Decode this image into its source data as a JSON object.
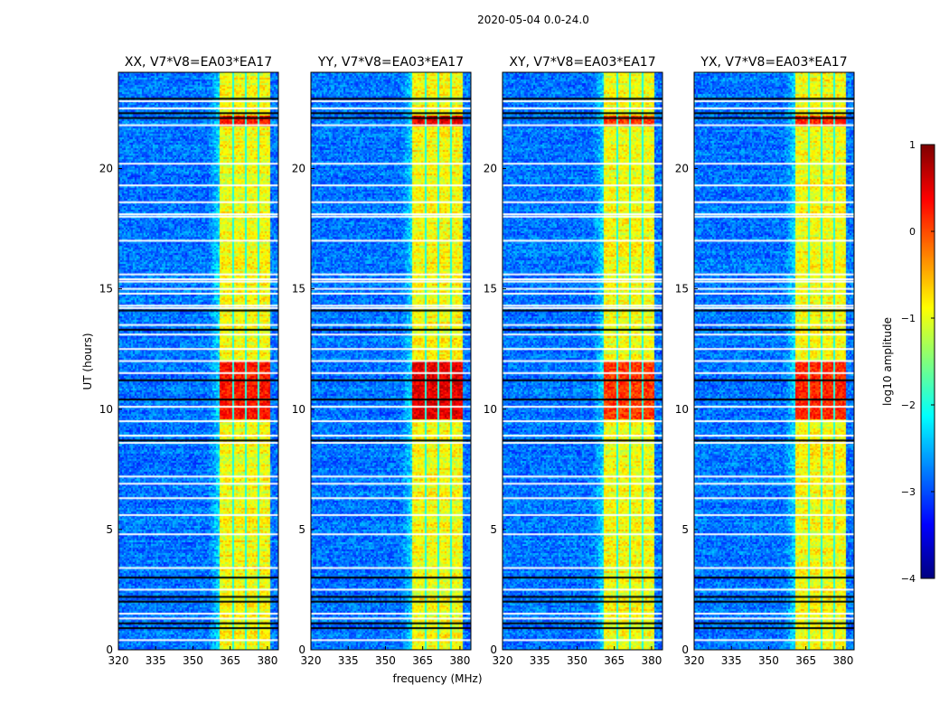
{
  "chart_data": {
    "type": "heatmap",
    "suptitle": "2020-05-04 0.0-24.0",
    "xlabel": "frequency (MHz)",
    "ylabel": "UT (hours)",
    "xlim": [
      320,
      384.4
    ],
    "ylim": [
      0,
      24
    ],
    "xticks": [
      "320",
      "335",
      "350",
      "365",
      "380"
    ],
    "yticks": [
      "0",
      "5",
      "10",
      "15",
      "20"
    ],
    "panels": [
      {
        "title": "XX, V7*V8=EA03*EA17",
        "band_peak": 0.3
      },
      {
        "title": "YY, V7*V8=EA03*EA17",
        "band_peak": 0.5
      },
      {
        "title": "XY, V7*V8=EA03*EA17",
        "band_peak": 0.1
      },
      {
        "title": "YX, V7*V8=EA03*EA17",
        "band_peak": 0.2
      }
    ],
    "background_level": -2.8,
    "band_mhz": [
      360.7,
      380.4
    ],
    "band_level": -0.9,
    "band_gaps_mhz": [
      365.8,
      370.9,
      376.0
    ],
    "strong_rfi_hours": [
      [
        9.6,
        12.0
      ],
      [
        21.8,
        22.2
      ]
    ],
    "flagged_white_hours": [
      0.4,
      1.3,
      1.5,
      2.5,
      3.4,
      4.8,
      5.6,
      6.3,
      6.9,
      7.2,
      8.6,
      8.9,
      9.5,
      10.1,
      11.5,
      12.0,
      12.5,
      13.1,
      13.5,
      14.2,
      14.3,
      14.8,
      15.0,
      15.3,
      15.4,
      15.6,
      17.0,
      18.0,
      18.1,
      18.6,
      19.3,
      20.2,
      21.8,
      22.5,
      22.8
    ],
    "flagged_black_hours": [
      0.9,
      1.1,
      2.0,
      2.2,
      3.0,
      8.7,
      10.4,
      11.2,
      13.3,
      14.1,
      22.1,
      22.3,
      22.9
    ],
    "colorbar": {
      "label": "log10 amplitude",
      "range": [
        -4,
        1
      ],
      "ticks": [
        "1",
        "0",
        "−1",
        "−2",
        "−3",
        "−4"
      ],
      "colormap": "jet"
    }
  }
}
